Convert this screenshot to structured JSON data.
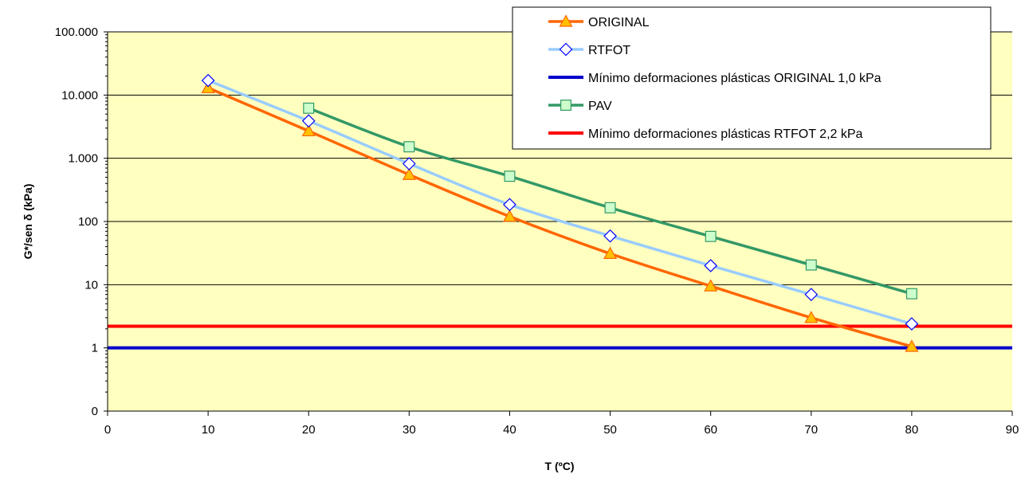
{
  "chart_data": {
    "type": "line",
    "xlabel": "T (ºC)",
    "ylabel": "G*/sen δ (kPa)",
    "x_scale": "linear",
    "y_scale": "log",
    "xlim": [
      0,
      90
    ],
    "ylim": [
      0.1,
      100000
    ],
    "x_ticks": [
      0,
      10,
      20,
      30,
      40,
      50,
      60,
      70,
      80,
      90
    ],
    "x_tick_labels": [
      "0",
      "10",
      "20",
      "30",
      "40",
      "50",
      "60",
      "70",
      "80",
      "90"
    ],
    "y_ticks": [
      0.1,
      1,
      10,
      100,
      1000,
      10000,
      100000
    ],
    "y_tick_labels": [
      "0",
      "1",
      "10",
      "100",
      "1.000",
      "10.000",
      "100.000"
    ],
    "grid": "horizontal major lines",
    "plot_background": "#ffffc0",
    "legend_position": "top-right",
    "series": [
      {
        "name": "ORIGINAL",
        "color": "#ff6600",
        "marker": "triangle",
        "marker_fill": "#ffc000",
        "marker_stroke": "#ff6600",
        "x": [
          10,
          20,
          30,
          40,
          50,
          60,
          70,
          80
        ],
        "y": [
          13000,
          2700,
          550,
          120,
          31,
          9.5,
          3.0,
          1.05
        ]
      },
      {
        "name": "RTFOT",
        "color": "#99ccff",
        "marker": "diamond",
        "marker_fill": "#ffffff",
        "marker_stroke": "#0000ff",
        "x": [
          10,
          20,
          30,
          40,
          50,
          60,
          70,
          80
        ],
        "y": [
          17000,
          3900,
          820,
          185,
          59,
          20,
          7.0,
          2.4
        ]
      },
      {
        "name": "Mínimo deformaciones plásticas ORIGINAL 1,0 kPa",
        "color": "#0000cc",
        "marker": "none",
        "type": "hline",
        "y": 1.0
      },
      {
        "name": "PAV",
        "color": "#339966",
        "marker": "square",
        "marker_fill": "#ccffcc",
        "marker_stroke": "#339966",
        "x": [
          20,
          30,
          40,
          50,
          60,
          70,
          80
        ],
        "y": [
          6200,
          1520,
          520,
          165,
          58,
          20.5,
          7.2
        ]
      },
      {
        "name": "Mínimo deformaciones plásticas RTFOT 2,2 kPa",
        "color": "#ff0000",
        "marker": "none",
        "type": "hline",
        "y": 2.2
      }
    ]
  }
}
